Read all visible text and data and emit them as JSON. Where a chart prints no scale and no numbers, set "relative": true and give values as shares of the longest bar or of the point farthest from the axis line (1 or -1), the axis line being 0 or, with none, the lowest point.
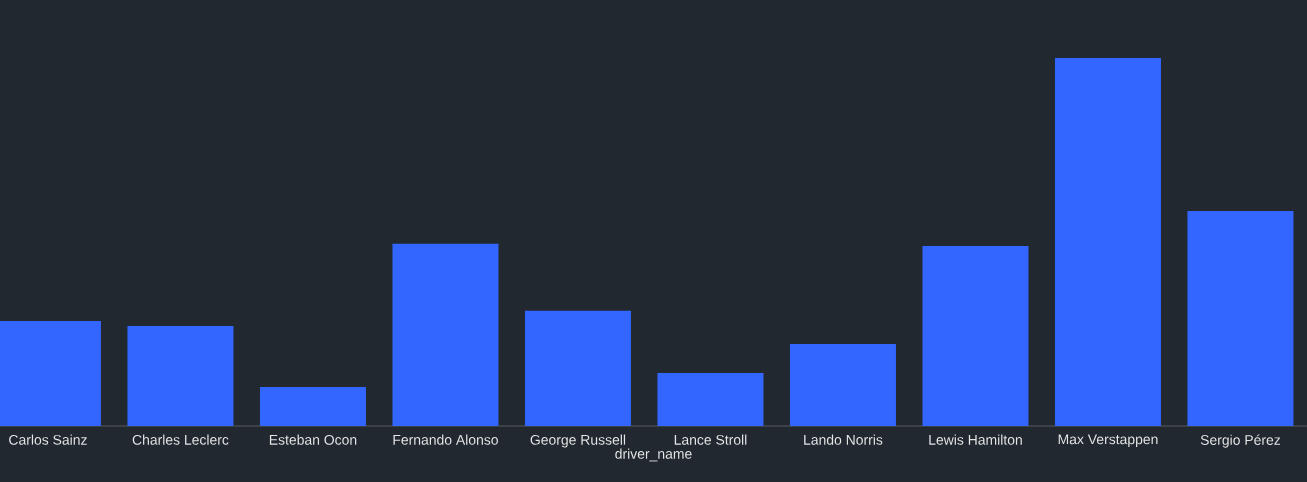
{
  "chart_data": {
    "type": "bar",
    "xlabel": "driver_name",
    "relative": true,
    "color": "#3366ff",
    "categories": [
      "Carlos Sainz",
      "Charles Leclerc",
      "Esteban Ocon",
      "Fernando Alonso",
      "George Russell",
      "Lance Stroll",
      "Lando Norris",
      "Lewis Hamilton",
      "Max Verstappen",
      "Sergio Pérez"
    ],
    "values": [
      0.285,
      0.272,
      0.106,
      0.495,
      0.313,
      0.144,
      0.223,
      0.489,
      1,
      0.584
    ]
  }
}
